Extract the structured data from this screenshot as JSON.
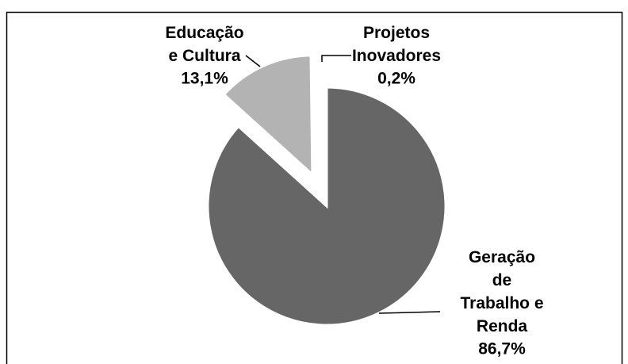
{
  "chart_data": {
    "type": "pie",
    "categories": [
      "Geração de Trabalho e Renda",
      "Educação e Cultura",
      "Projetos Inovadores"
    ],
    "values": [
      86.7,
      13.1,
      0.2
    ],
    "value_labels": [
      "86,7%",
      "13,1%",
      "0,2%"
    ],
    "colors": [
      "#666666",
      "#b3b3b3",
      "#d9d9d9"
    ],
    "start_angle": 0,
    "direction": "clockwise"
  }
}
